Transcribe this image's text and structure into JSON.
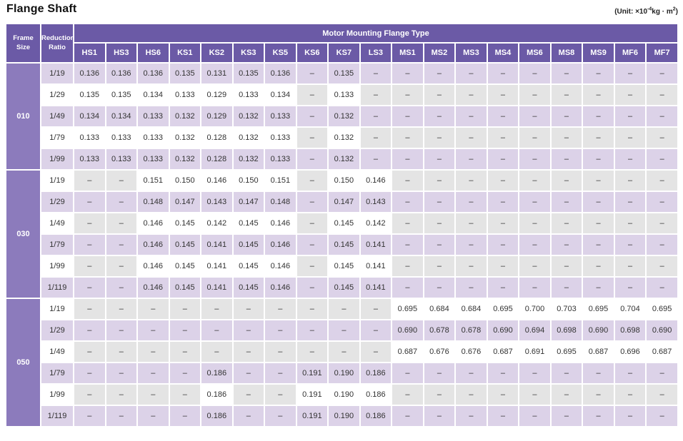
{
  "page": {
    "title": "Flange Shaft",
    "unit": {
      "prefix": "(Unit: ×10",
      "sup1": "-4",
      "mid": "kg · m",
      "sup2": "2",
      "suffix": ")"
    }
  },
  "table": {
    "corner_headers": {
      "frame": "Frame Size",
      "ratio": "Reduction Ratio"
    },
    "group_header": "Motor Mounting Flange Type",
    "flange_columns": [
      "HS1",
      "HS3",
      "HS6",
      "KS1",
      "KS2",
      "KS3",
      "KS5",
      "KS6",
      "KS7",
      "LS3",
      "MS1",
      "MS2",
      "MS3",
      "MS4",
      "MS6",
      "MS8",
      "MS9",
      "MF6",
      "MF7"
    ],
    "dash": "–",
    "colors": {
      "header_bg": "#6b5aa6",
      "frame_bg": "#8c7bbc",
      "row_lavender": "#dcd2e8",
      "dash_gray": "#e4e4e4"
    },
    "blocks": [
      {
        "frame_size": "010",
        "rows": [
          {
            "ratio": "1/19",
            "values": [
              "0.136",
              "0.136",
              "0.136",
              "0.135",
              "0.131",
              "0.135",
              "0.136",
              "–",
              "0.135",
              "–",
              "–",
              "–",
              "–",
              "–",
              "–",
              "–",
              "–",
              "–",
              "–"
            ]
          },
          {
            "ratio": "1/29",
            "values": [
              "0.135",
              "0.135",
              "0.134",
              "0.133",
              "0.129",
              "0.133",
              "0.134",
              "–",
              "0.133",
              "–",
              "–",
              "–",
              "–",
              "–",
              "–",
              "–",
              "–",
              "–",
              "–"
            ]
          },
          {
            "ratio": "1/49",
            "values": [
              "0.134",
              "0.134",
              "0.133",
              "0.132",
              "0.129",
              "0.132",
              "0.133",
              "–",
              "0.132",
              "–",
              "–",
              "–",
              "–",
              "–",
              "–",
              "–",
              "–",
              "–",
              "–"
            ]
          },
          {
            "ratio": "1/79",
            "values": [
              "0.133",
              "0.133",
              "0.133",
              "0.132",
              "0.128",
              "0.132",
              "0.133",
              "–",
              "0.132",
              "–",
              "–",
              "–",
              "–",
              "–",
              "–",
              "–",
              "–",
              "–",
              "–"
            ]
          },
          {
            "ratio": "1/99",
            "values": [
              "0.133",
              "0.133",
              "0.133",
              "0.132",
              "0.128",
              "0.132",
              "0.133",
              "–",
              "0.132",
              "–",
              "–",
              "–",
              "–",
              "–",
              "–",
              "–",
              "–",
              "–",
              "–"
            ]
          }
        ]
      },
      {
        "frame_size": "030",
        "rows": [
          {
            "ratio": "1/19",
            "values": [
              "–",
              "–",
              "0.151",
              "0.150",
              "0.146",
              "0.150",
              "0.151",
              "–",
              "0.150",
              "0.146",
              "–",
              "–",
              "–",
              "–",
              "–",
              "–",
              "–",
              "–",
              "–"
            ]
          },
          {
            "ratio": "1/29",
            "values": [
              "–",
              "–",
              "0.148",
              "0.147",
              "0.143",
              "0.147",
              "0.148",
              "–",
              "0.147",
              "0.143",
              "–",
              "–",
              "–",
              "–",
              "–",
              "–",
              "–",
              "–",
              "–"
            ]
          },
          {
            "ratio": "1/49",
            "values": [
              "–",
              "–",
              "0.146",
              "0.145",
              "0.142",
              "0.145",
              "0.146",
              "–",
              "0.145",
              "0.142",
              "–",
              "–",
              "–",
              "–",
              "–",
              "–",
              "–",
              "–",
              "–"
            ]
          },
          {
            "ratio": "1/79",
            "values": [
              "–",
              "–",
              "0.146",
              "0.145",
              "0.141",
              "0.145",
              "0.146",
              "–",
              "0.145",
              "0.141",
              "–",
              "–",
              "–",
              "–",
              "–",
              "–",
              "–",
              "–",
              "–"
            ]
          },
          {
            "ratio": "1/99",
            "values": [
              "–",
              "–",
              "0.146",
              "0.145",
              "0.141",
              "0.145",
              "0.146",
              "–",
              "0.145",
              "0.141",
              "–",
              "–",
              "–",
              "–",
              "–",
              "–",
              "–",
              "–",
              "–"
            ]
          },
          {
            "ratio": "1/119",
            "values": [
              "–",
              "–",
              "0.146",
              "0.145",
              "0.141",
              "0.145",
              "0.146",
              "–",
              "0.145",
              "0.141",
              "–",
              "–",
              "–",
              "–",
              "–",
              "–",
              "–",
              "–",
              "–"
            ]
          }
        ]
      },
      {
        "frame_size": "050",
        "rows": [
          {
            "ratio": "1/19",
            "values": [
              "–",
              "–",
              "–",
              "–",
              "–",
              "–",
              "–",
              "–",
              "–",
              "–",
              "0.695",
              "0.684",
              "0.684",
              "0.695",
              "0.700",
              "0.703",
              "0.695",
              "0.704",
              "0.695"
            ]
          },
          {
            "ratio": "1/29",
            "values": [
              "–",
              "–",
              "–",
              "–",
              "–",
              "–",
              "–",
              "–",
              "–",
              "–",
              "0.690",
              "0.678",
              "0.678",
              "0.690",
              "0.694",
              "0.698",
              "0.690",
              "0.698",
              "0.690"
            ]
          },
          {
            "ratio": "1/49",
            "values": [
              "–",
              "–",
              "–",
              "–",
              "–",
              "–",
              "–",
              "–",
              "–",
              "–",
              "0.687",
              "0.676",
              "0.676",
              "0.687",
              "0.691",
              "0.695",
              "0.687",
              "0.696",
              "0.687"
            ]
          },
          {
            "ratio": "1/79",
            "values": [
              "–",
              "–",
              "–",
              "–",
              "0.186",
              "–",
              "–",
              "0.191",
              "0.190",
              "0.186",
              "–",
              "–",
              "–",
              "–",
              "–",
              "–",
              "–",
              "–",
              "–"
            ]
          },
          {
            "ratio": "1/99",
            "values": [
              "–",
              "–",
              "–",
              "–",
              "0.186",
              "–",
              "–",
              "0.191",
              "0.190",
              "0.186",
              "–",
              "–",
              "–",
              "–",
              "–",
              "–",
              "–",
              "–",
              "–"
            ]
          },
          {
            "ratio": "1/119",
            "values": [
              "–",
              "–",
              "–",
              "–",
              "0.186",
              "–",
              "–",
              "0.191",
              "0.190",
              "0.186",
              "–",
              "–",
              "–",
              "–",
              "–",
              "–",
              "–",
              "–",
              "–"
            ]
          }
        ]
      }
    ]
  }
}
